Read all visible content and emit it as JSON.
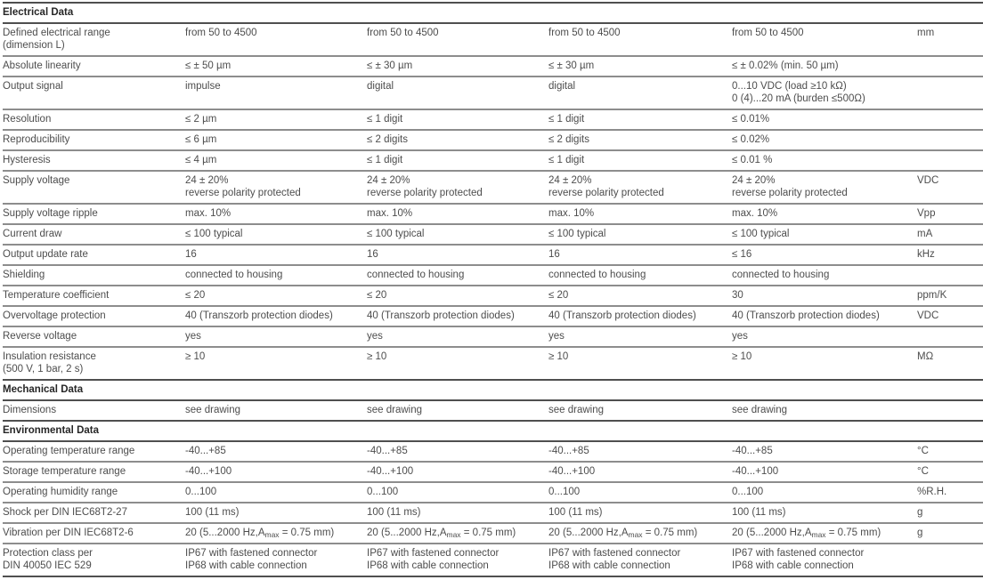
{
  "table": {
    "column_names": [
      "parameter",
      "variant-1",
      "variant-2",
      "variant-3",
      "variant-4",
      "unit"
    ],
    "sections": [
      {
        "title": "Electrical Data",
        "rows": [
          {
            "parameter": "Defined electrical range\n(dimension L)",
            "values": [
              "from 50 to 4500",
              "from 50 to 4500",
              "from 50 to 4500",
              "from 50 to 4500"
            ],
            "unit": "mm"
          },
          {
            "parameter": "Absolute linearity",
            "values": [
              "≤ ± 50 µm",
              "≤ ± 30 µm",
              "≤ ± 30 µm",
              "≤ ± 0.02% (min. 50 µm)"
            ],
            "unit": ""
          },
          {
            "parameter": "Output signal",
            "values": [
              "impulse",
              "digital",
              "digital",
              "0...10 VDC (load ≥10 kΩ)\n0 (4)...20 mA (burden ≤500Ω)"
            ],
            "unit": ""
          },
          {
            "parameter": "Resolution",
            "values": [
              "≤ 2 µm",
              "≤ 1 digit",
              "≤ 1 digit",
              "≤ 0.01%"
            ],
            "unit": ""
          },
          {
            "parameter": "Reproducibility",
            "values": [
              "≤ 6 µm",
              "≤ 2 digits",
              "≤ 2 digits",
              "≤ 0.02%"
            ],
            "unit": ""
          },
          {
            "parameter": "Hysteresis",
            "values": [
              "≤ 4 µm",
              "≤ 1 digit",
              "≤ 1 digit",
              "≤ 0.01 %"
            ],
            "unit": ""
          },
          {
            "parameter": "Supply voltage",
            "values": [
              "24 ± 20%\nreverse polarity protected",
              "24 ± 20%\nreverse polarity protected",
              "24 ± 20%\nreverse polarity protected",
              "24 ± 20%\nreverse polarity protected"
            ],
            "unit": "VDC"
          },
          {
            "parameter": "Supply voltage ripple",
            "values": [
              "max. 10%",
              "max. 10%",
              "max. 10%",
              "max. 10%"
            ],
            "unit": "Vpp"
          },
          {
            "parameter": "Current draw",
            "values": [
              "≤ 100 typical",
              "≤ 100 typical",
              "≤ 100 typical",
              "≤ 100 typical"
            ],
            "unit": "mA"
          },
          {
            "parameter": "Output update rate",
            "values": [
              "16",
              "16",
              "16",
              "≤ 16"
            ],
            "unit": "kHz"
          },
          {
            "parameter": "Shielding",
            "values": [
              "connected to housing",
              "connected to housing",
              "connected to housing",
              "connected to housing"
            ],
            "unit": ""
          },
          {
            "parameter": "Temperature coefficient",
            "values": [
              "≤ 20",
              "≤ 20",
              "≤ 20",
              "30"
            ],
            "unit": "ppm/K"
          },
          {
            "parameter": "Overvoltage protection",
            "values": [
              "40 (Transzorb protection diodes)",
              "40 (Transzorb protection diodes)",
              "40 (Transzorb protection diodes)",
              "40 (Transzorb protection diodes)"
            ],
            "unit": "VDC"
          },
          {
            "parameter": "Reverse voltage",
            "values": [
              "yes",
              "yes",
              "yes",
              "yes"
            ],
            "unit": ""
          },
          {
            "parameter": "Insulation resistance\n(500 V, 1 bar, 2 s)",
            "values": [
              "≥ 10",
              "≥ 10",
              "≥ 10",
              "≥ 10"
            ],
            "unit": "MΩ"
          }
        ]
      },
      {
        "title": "Mechanical Data",
        "rows": [
          {
            "parameter": "Dimensions",
            "values": [
              "see drawing",
              "see drawing",
              "see drawing",
              "see drawing"
            ],
            "unit": ""
          }
        ]
      },
      {
        "title": "Environmental Data",
        "rows": [
          {
            "parameter": "Operating temperature range",
            "values": [
              "-40...+85",
              "-40...+85",
              "-40...+85",
              "-40...+85"
            ],
            "unit": "°C"
          },
          {
            "parameter": "Storage temperature range",
            "values": [
              "-40...+100",
              "-40...+100",
              "-40...+100",
              "-40...+100"
            ],
            "unit": "°C"
          },
          {
            "parameter": "Operating humidity range",
            "values": [
              "0...100",
              "0...100",
              "0...100",
              "0...100"
            ],
            "unit": "%R.H."
          },
          {
            "parameter": "Shock per DIN IEC68T2-27",
            "values": [
              "100 (11 ms)",
              "100 (11 ms)",
              "100 (11 ms)",
              "100 (11 ms)"
            ],
            "unit": "g"
          },
          {
            "parameter": "Vibration per DIN IEC68T2-6",
            "values": [
              "20 (5...2000 Hz,A~max~ = 0.75 mm)",
              "20 (5...2000 Hz,A~max~ = 0.75 mm)",
              "20 (5...2000 Hz,A~max~ = 0.75 mm)",
              "20 (5...2000 Hz,A~max~ = 0.75 mm)"
            ],
            "unit": "g"
          },
          {
            "parameter": "Protection class per\nDIN 40050 IEC 529",
            "values": [
              "IP67 with fastened connector\nIP68 with cable connection",
              "IP67 with fastened connector\nIP68 with cable connection",
              "IP67 with fastened connector\nIP68 with cable connection",
              "IP67 with fastened connector\nIP68 with cable connection"
            ],
            "unit": ""
          }
        ]
      }
    ]
  }
}
